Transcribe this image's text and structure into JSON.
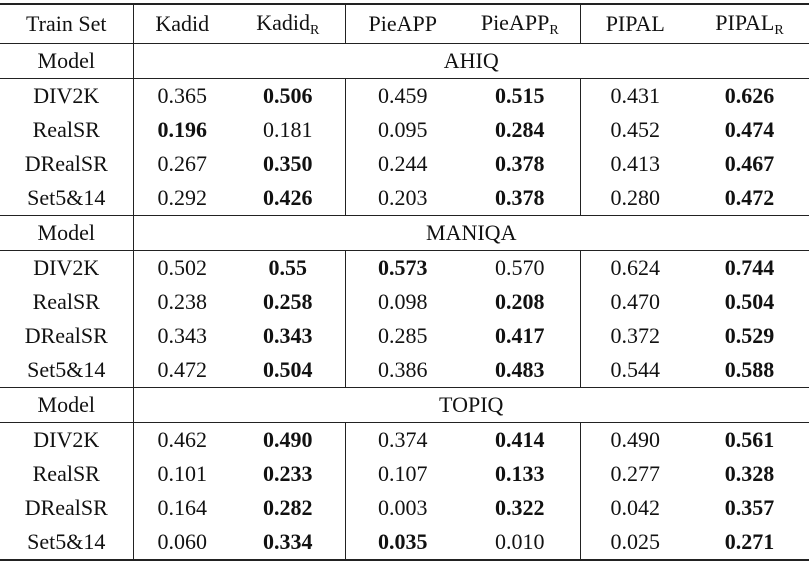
{
  "header": {
    "columns": [
      {
        "text": "Train Set"
      },
      {
        "text": "Kadid"
      },
      {
        "text": "Kadid",
        "sub": "R"
      },
      {
        "text": "PieAPP"
      },
      {
        "text": "PieAPP",
        "sub": "R"
      },
      {
        "text": "PIPAL"
      },
      {
        "text": "PIPAL",
        "sub": "R"
      }
    ]
  },
  "groups": [
    {
      "label": "Model",
      "name": "AHIQ",
      "rows": [
        {
          "train": "DIV2K",
          "cells": [
            "0.365",
            "0.506",
            "0.459",
            "0.515",
            "0.431",
            "0.626"
          ],
          "bold": [
            false,
            true,
            false,
            true,
            false,
            true
          ]
        },
        {
          "train": "RealSR",
          "cells": [
            "0.196",
            "0.181",
            "0.095",
            "0.284",
            "0.452",
            "0.474"
          ],
          "bold": [
            true,
            false,
            false,
            true,
            false,
            true
          ]
        },
        {
          "train": "DRealSR",
          "cells": [
            "0.267",
            "0.350",
            "0.244",
            "0.378",
            "0.413",
            "0.467"
          ],
          "bold": [
            false,
            true,
            false,
            true,
            false,
            true
          ]
        },
        {
          "train": "Set5&14",
          "cells": [
            "0.292",
            "0.426",
            "0.203",
            "0.378",
            "0.280",
            "0.472"
          ],
          "bold": [
            false,
            true,
            false,
            true,
            false,
            true
          ]
        }
      ]
    },
    {
      "label": "Model",
      "name": "MANIQA",
      "rows": [
        {
          "train": "DIV2K",
          "cells": [
            "0.502",
            "0.55",
            "0.573",
            "0.570",
            "0.624",
            "0.744"
          ],
          "bold": [
            false,
            true,
            true,
            false,
            false,
            true
          ]
        },
        {
          "train": "RealSR",
          "cells": [
            "0.238",
            "0.258",
            "0.098",
            "0.208",
            "0.470",
            "0.504"
          ],
          "bold": [
            false,
            true,
            false,
            true,
            false,
            true
          ]
        },
        {
          "train": "DRealSR",
          "cells": [
            "0.343",
            "0.343",
            "0.285",
            "0.417",
            "0.372",
            "0.529"
          ],
          "bold": [
            false,
            true,
            false,
            true,
            false,
            true
          ]
        },
        {
          "train": "Set5&14",
          "cells": [
            "0.472",
            "0.504",
            "0.386",
            "0.483",
            "0.544",
            "0.588"
          ],
          "bold": [
            false,
            true,
            false,
            true,
            false,
            true
          ]
        }
      ]
    },
    {
      "label": "Model",
      "name": "TOPIQ",
      "rows": [
        {
          "train": "DIV2K",
          "cells": [
            "0.462",
            "0.490",
            "0.374",
            "0.414",
            "0.490",
            "0.561"
          ],
          "bold": [
            false,
            true,
            false,
            true,
            false,
            true
          ]
        },
        {
          "train": "RealSR",
          "cells": [
            "0.101",
            "0.233",
            "0.107",
            "0.133",
            "0.277",
            "0.328"
          ],
          "bold": [
            false,
            true,
            false,
            true,
            false,
            true
          ]
        },
        {
          "train": "DRealSR",
          "cells": [
            "0.164",
            "0.282",
            "0.003",
            "0.322",
            "0.042",
            "0.357"
          ],
          "bold": [
            false,
            true,
            false,
            true,
            false,
            true
          ]
        },
        {
          "train": "Set5&14",
          "cells": [
            "0.060",
            "0.334",
            "0.035",
            "0.010",
            "0.025",
            "0.271"
          ],
          "bold": [
            false,
            true,
            true,
            false,
            false,
            true
          ]
        }
      ]
    }
  ]
}
